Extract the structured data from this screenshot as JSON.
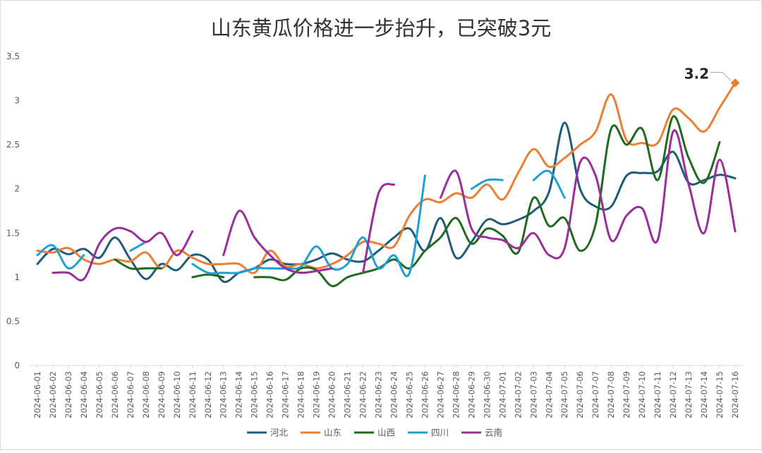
{
  "chart_data": {
    "type": "line",
    "title": "山东黄瓜价格进一步抬升，已突破3元",
    "xlabel": "",
    "ylabel": "",
    "ylim": [
      0,
      3.5
    ],
    "yticks": [
      "0",
      "0.5",
      "1",
      "1.5",
      "2",
      "2.5",
      "3",
      "3.5"
    ],
    "grid": false,
    "legend_position": "bottom",
    "categories": [
      "2024-06-01",
      "2024-06-02",
      "2024-06-03",
      "2024-06-04",
      "2024-06-05",
      "2024-06-06",
      "2024-06-07",
      "2024-06-08",
      "2024-06-09",
      "2024-06-10",
      "2024-06-11",
      "2024-06-12",
      "2024-06-13",
      "2024-06-14",
      "2024-06-15",
      "2024-06-16",
      "2024-06-17",
      "2024-06-18",
      "2024-06-19",
      "2024-06-20",
      "2024-06-21",
      "2024-06-22",
      "2024-06-23",
      "2024-06-24",
      "2024-06-25",
      "2024-06-26",
      "2024-06-27",
      "2024-06-28",
      "2024-06-29",
      "2024-06-30",
      "2024-07-01",
      "2024-07-02",
      "2024-07-03",
      "2024-07-04",
      "2024-07-05",
      "2024-07-06",
      "2024-07-07",
      "2024-07-08",
      "2024-07-09",
      "2024-07-10",
      "2024-07-11",
      "2024-07-12",
      "2024-07-13",
      "2024-07-14",
      "2024-07-15",
      "2024-07-16"
    ],
    "series": [
      {
        "name": "河北",
        "color": "#1f5c7a",
        "values": [
          1.15,
          1.32,
          1.26,
          1.32,
          1.22,
          1.45,
          1.2,
          0.98,
          1.15,
          1.08,
          1.25,
          1.2,
          0.95,
          1.05,
          1.1,
          1.2,
          1.15,
          1.15,
          1.2,
          1.27,
          1.2,
          1.18,
          1.3,
          1.45,
          1.55,
          1.3,
          1.67,
          1.22,
          1.4,
          1.65,
          1.6,
          1.65,
          1.75,
          1.97,
          2.75,
          2.0,
          1.8,
          1.8,
          2.15,
          2.18,
          2.2,
          2.42,
          2.07,
          2.1,
          2.16,
          2.12
        ]
      },
      {
        "name": "山东",
        "color": "#ed7d31",
        "values": [
          1.3,
          1.28,
          1.33,
          1.2,
          1.15,
          1.2,
          1.18,
          1.28,
          1.1,
          1.3,
          1.22,
          1.15,
          1.15,
          1.15,
          1.05,
          1.3,
          1.12,
          1.15,
          1.1,
          1.15,
          1.25,
          1.4,
          1.38,
          1.35,
          1.7,
          1.88,
          1.85,
          1.95,
          1.9,
          2.05,
          1.88,
          2.18,
          2.45,
          2.25,
          2.35,
          2.5,
          2.65,
          3.07,
          2.55,
          2.52,
          2.52,
          2.9,
          2.8,
          2.65,
          2.92,
          3.2
        ]
      },
      {
        "name": "山西",
        "color": "#1e6b1e",
        "values": [
          null,
          null,
          null,
          null,
          null,
          1.2,
          1.1,
          1.1,
          1.1,
          null,
          1.0,
          1.03,
          1.0,
          null,
          1.0,
          1.0,
          0.97,
          1.1,
          1.08,
          0.9,
          1.0,
          1.05,
          1.1,
          1.2,
          1.1,
          1.3,
          1.45,
          1.67,
          1.38,
          1.55,
          1.47,
          1.28,
          1.9,
          1.58,
          1.67,
          1.3,
          1.6,
          2.68,
          2.5,
          2.68,
          2.1,
          2.82,
          2.35,
          2.07,
          2.53,
          null
        ]
      },
      {
        "name": "四川",
        "color": "#1ba1d6",
        "values": [
          1.25,
          1.36,
          1.1,
          1.25,
          null,
          null,
          1.3,
          1.4,
          null,
          null,
          1.15,
          1.05,
          1.05,
          1.05,
          1.1,
          1.1,
          1.1,
          1.12,
          1.35,
          1.1,
          1.15,
          1.45,
          1.1,
          1.25,
          1.05,
          2.15,
          null,
          null,
          2.0,
          2.1,
          2.1,
          null,
          2.1,
          2.2,
          1.9,
          null,
          null,
          null,
          null,
          null,
          null,
          null,
          null,
          null,
          null,
          null
        ]
      },
      {
        "name": "云南",
        "color": "#9b2d9b",
        "values": [
          null,
          1.05,
          1.05,
          0.98,
          1.38,
          1.55,
          1.52,
          1.4,
          1.5,
          1.25,
          1.52,
          null,
          1.25,
          1.75,
          1.45,
          1.25,
          1.1,
          1.05,
          1.07,
          1.1,
          null,
          1.05,
          1.95,
          2.05,
          null,
          null,
          1.9,
          2.2,
          1.55,
          1.45,
          1.42,
          1.33,
          1.5,
          1.25,
          1.33,
          2.3,
          2.15,
          1.42,
          1.7,
          1.78,
          1.42,
          2.65,
          2.05,
          1.5,
          2.33,
          1.52
        ]
      }
    ],
    "annotations": [
      {
        "text": "3.2",
        "series": "山东",
        "category": "2024-07-16",
        "value": 3.2
      }
    ]
  }
}
